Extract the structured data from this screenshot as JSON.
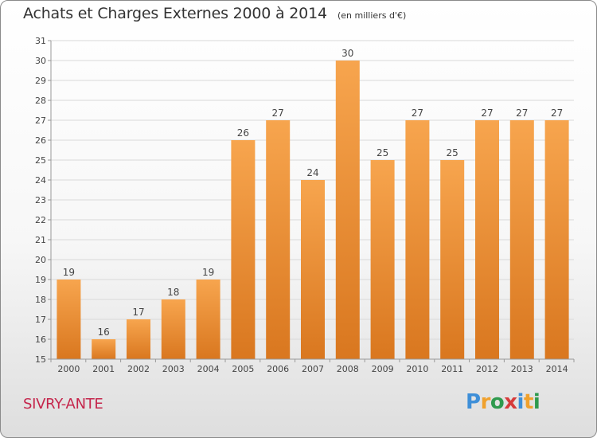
{
  "chart_data": {
    "type": "bar",
    "title": "Achats et Charges Externes 2000 à 2014",
    "subtitle": "(en milliers d'€)",
    "xlabel": "",
    "ylabel": "",
    "categories": [
      "2000",
      "2001",
      "2002",
      "2003",
      "2004",
      "2005",
      "2006",
      "2007",
      "2008",
      "2009",
      "2010",
      "2011",
      "2012",
      "2013",
      "2014"
    ],
    "values": [
      19,
      16,
      17,
      18,
      19,
      26,
      27,
      24,
      30,
      25,
      27,
      25,
      27,
      27,
      27
    ],
    "ylim": [
      15,
      31
    ],
    "yticks": [
      15,
      16,
      17,
      18,
      19,
      20,
      21,
      22,
      23,
      24,
      25,
      26,
      27,
      28,
      29,
      30,
      31
    ],
    "grid": true,
    "legend": "none",
    "bar_color_top": "#f7a54e",
    "bar_color_bottom": "#d9771f"
  },
  "footer": {
    "commune": "SIVRY-ANTE"
  },
  "logo": {
    "text": "Proxiti",
    "colors": [
      "#3e8fd8",
      "#f0a12d",
      "#2f9a4e",
      "#d63b3b",
      "#3e8fd8",
      "#f0a12d",
      "#2f9a4e"
    ]
  }
}
